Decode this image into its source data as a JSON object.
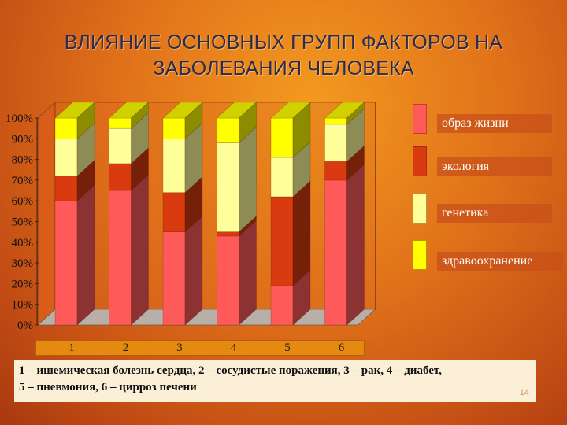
{
  "title": "ВЛИЯНИЕ ОСНОВНЫХ ГРУПП ФАКТОРОВ НА ЗАБОЛЕВАНИЯ ЧЕЛОВЕКА",
  "caption": {
    "line1": "1 – ишемическая болезнь сердца, 2 – сосудистые поражения, 3 – рак, 4 – диабет,",
    "line2": "5 – пневмония, 6 – цирроз печени",
    "page_number": "14"
  },
  "colors": {
    "образ жизни": "#ff5a5a",
    "экология": "#d93a10",
    "генетика": "#ffff99",
    "здравоохранение": "#ffff00"
  },
  "chart_data": {
    "type": "bar",
    "stacked": true,
    "percent": true,
    "three_d": true,
    "categories": [
      "1",
      "2",
      "3",
      "4",
      "5",
      "6"
    ],
    "ylim": [
      0,
      100
    ],
    "yticks": [
      "0%",
      "10%",
      "20%",
      "30%",
      "40%",
      "50%",
      "60%",
      "70%",
      "80%",
      "90%",
      "100%"
    ],
    "legend_position": "right",
    "series": [
      {
        "name": "образ жизни",
        "values": [
          60,
          65,
          45,
          43,
          19,
          70
        ]
      },
      {
        "name": "экология",
        "values": [
          12,
          13,
          19,
          2,
          43,
          9
        ]
      },
      {
        "name": "генетика",
        "values": [
          18,
          17,
          26,
          43,
          19,
          18
        ]
      },
      {
        "name": "здравоохранение",
        "values": [
          10,
          5,
          10,
          12,
          19,
          3
        ]
      }
    ]
  }
}
